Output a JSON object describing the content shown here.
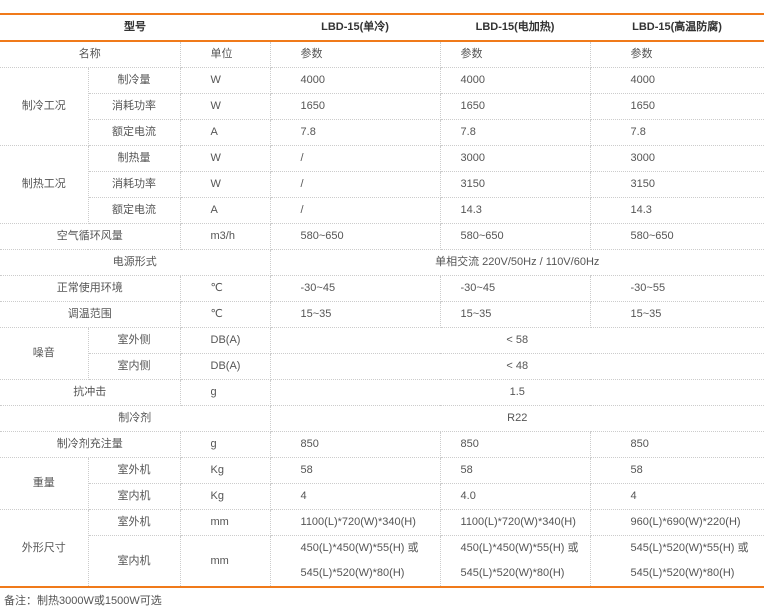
{
  "colors": {
    "accent": "#f07a1a",
    "grid": "#cccccc"
  },
  "header": [
    {
      "text": "型号",
      "colspan": 3
    },
    {
      "text": "LBD-15(单冷)"
    },
    {
      "text": "LBD-15(电加热)"
    },
    {
      "text": "LBD-15(高温防腐)"
    }
  ],
  "rows": [
    [
      {
        "text": "名称",
        "colspan": 2,
        "a": "c"
      },
      {
        "text": "单位",
        "a": "u"
      },
      {
        "text": "参数"
      },
      {
        "text": "参数"
      },
      {
        "text": "参数"
      }
    ],
    [
      {
        "text": "制冷工况",
        "rowspan": 3,
        "a": "c"
      },
      {
        "text": "制冷量",
        "a": "c"
      },
      {
        "text": "W",
        "a": "u"
      },
      {
        "text": "4000"
      },
      {
        "text": "4000"
      },
      {
        "text": "4000"
      }
    ],
    [
      {
        "text": "消耗功率",
        "a": "c"
      },
      {
        "text": "W",
        "a": "u"
      },
      {
        "text": "1650"
      },
      {
        "text": "1650"
      },
      {
        "text": "1650"
      }
    ],
    [
      {
        "text": "额定电流",
        "a": "c"
      },
      {
        "text": "A",
        "a": "u"
      },
      {
        "text": "7.8"
      },
      {
        "text": "7.8"
      },
      {
        "text": "7.8"
      }
    ],
    [
      {
        "text": "制热工况",
        "rowspan": 3,
        "a": "c"
      },
      {
        "text": "制热量",
        "a": "c"
      },
      {
        "text": "W",
        "a": "u"
      },
      {
        "text": "/"
      },
      {
        "text": "3000"
      },
      {
        "text": "3000"
      }
    ],
    [
      {
        "text": "消耗功率",
        "a": "c"
      },
      {
        "text": "W",
        "a": "u"
      },
      {
        "text": "/"
      },
      {
        "text": "3150"
      },
      {
        "text": "3150"
      }
    ],
    [
      {
        "text": "额定电流",
        "a": "c"
      },
      {
        "text": "A",
        "a": "u"
      },
      {
        "text": "/"
      },
      {
        "text": "14.3"
      },
      {
        "text": "14.3"
      }
    ],
    [
      {
        "text": "空气循环风量",
        "colspan": 2,
        "a": "c"
      },
      {
        "text": "m3/h",
        "a": "u"
      },
      {
        "text": "580~650"
      },
      {
        "text": "580~650"
      },
      {
        "text": "580~650"
      }
    ],
    [
      {
        "text": "电源形式",
        "colspan": 3,
        "a": "c"
      },
      {
        "text": "单相交流 220V/50Hz  /  110V/60Hz",
        "colspan": 3,
        "a": "c"
      }
    ],
    [
      {
        "text": "正常使用环境",
        "colspan": 2,
        "a": "c"
      },
      {
        "text": "℃",
        "a": "u"
      },
      {
        "text": "-30~45"
      },
      {
        "text": "-30~45"
      },
      {
        "text": "-30~55"
      }
    ],
    [
      {
        "text": "调温范围",
        "colspan": 2,
        "a": "c"
      },
      {
        "text": "℃",
        "a": "u"
      },
      {
        "text": "15~35"
      },
      {
        "text": "15~35"
      },
      {
        "text": "15~35"
      }
    ],
    [
      {
        "text": "噪音",
        "rowspan": 2,
        "a": "c"
      },
      {
        "text": "室外侧",
        "a": "c"
      },
      {
        "text": "DB(A)",
        "a": "u"
      },
      {
        "text": "< 58",
        "colspan": 3,
        "a": "c"
      }
    ],
    [
      {
        "text": "室内侧",
        "a": "c"
      },
      {
        "text": "DB(A)",
        "a": "u"
      },
      {
        "text": "< 48",
        "colspan": 3,
        "a": "c"
      }
    ],
    [
      {
        "text": "抗冲击",
        "colspan": 2,
        "a": "c"
      },
      {
        "text": "g",
        "a": "u"
      },
      {
        "text": "1.5",
        "colspan": 3,
        "a": "c"
      }
    ],
    [
      {
        "text": "制冷剂",
        "colspan": 3,
        "a": "c"
      },
      {
        "text": "R22",
        "colspan": 3,
        "a": "c"
      }
    ],
    [
      {
        "text": "制冷剂充注量",
        "colspan": 2,
        "a": "c"
      },
      {
        "text": "g",
        "a": "u"
      },
      {
        "text": "850"
      },
      {
        "text": "850"
      },
      {
        "text": "850"
      }
    ],
    [
      {
        "text": "重量",
        "rowspan": 2,
        "a": "c"
      },
      {
        "text": "室外机",
        "a": "c"
      },
      {
        "text": "Kg",
        "a": "u"
      },
      {
        "text": "58"
      },
      {
        "text": "58"
      },
      {
        "text": "58"
      }
    ],
    [
      {
        "text": "室内机",
        "a": "c"
      },
      {
        "text": "Kg",
        "a": "u"
      },
      {
        "text": "4"
      },
      {
        "text": "4.0"
      },
      {
        "text": "4"
      }
    ],
    [
      {
        "text": "外形尺寸",
        "rowspan": 2,
        "a": "c"
      },
      {
        "text": "室外机",
        "a": "c"
      },
      {
        "text": "mm",
        "a": "u"
      },
      {
        "text": "1100(L)*720(W)*340(H)"
      },
      {
        "text": "1100(L)*720(W)*340(H)"
      },
      {
        "text": "960(L)*690(W)*220(H)"
      }
    ],
    [
      {
        "text": "室内机",
        "a": "c"
      },
      {
        "text": "mm",
        "a": "u"
      },
      {
        "text": "450(L)*450(W)*55(H) 或\n545(L)*520(W)*80(H)"
      },
      {
        "text": "450(L)*450(W)*55(H) 或\n545(L)*520(W)*80(H)"
      },
      {
        "text": "545(L)*520(W)*55(H) 或\n545(L)*520(W)*80(H)"
      }
    ]
  ],
  "note": "备注：制热3000W或1500W可选"
}
